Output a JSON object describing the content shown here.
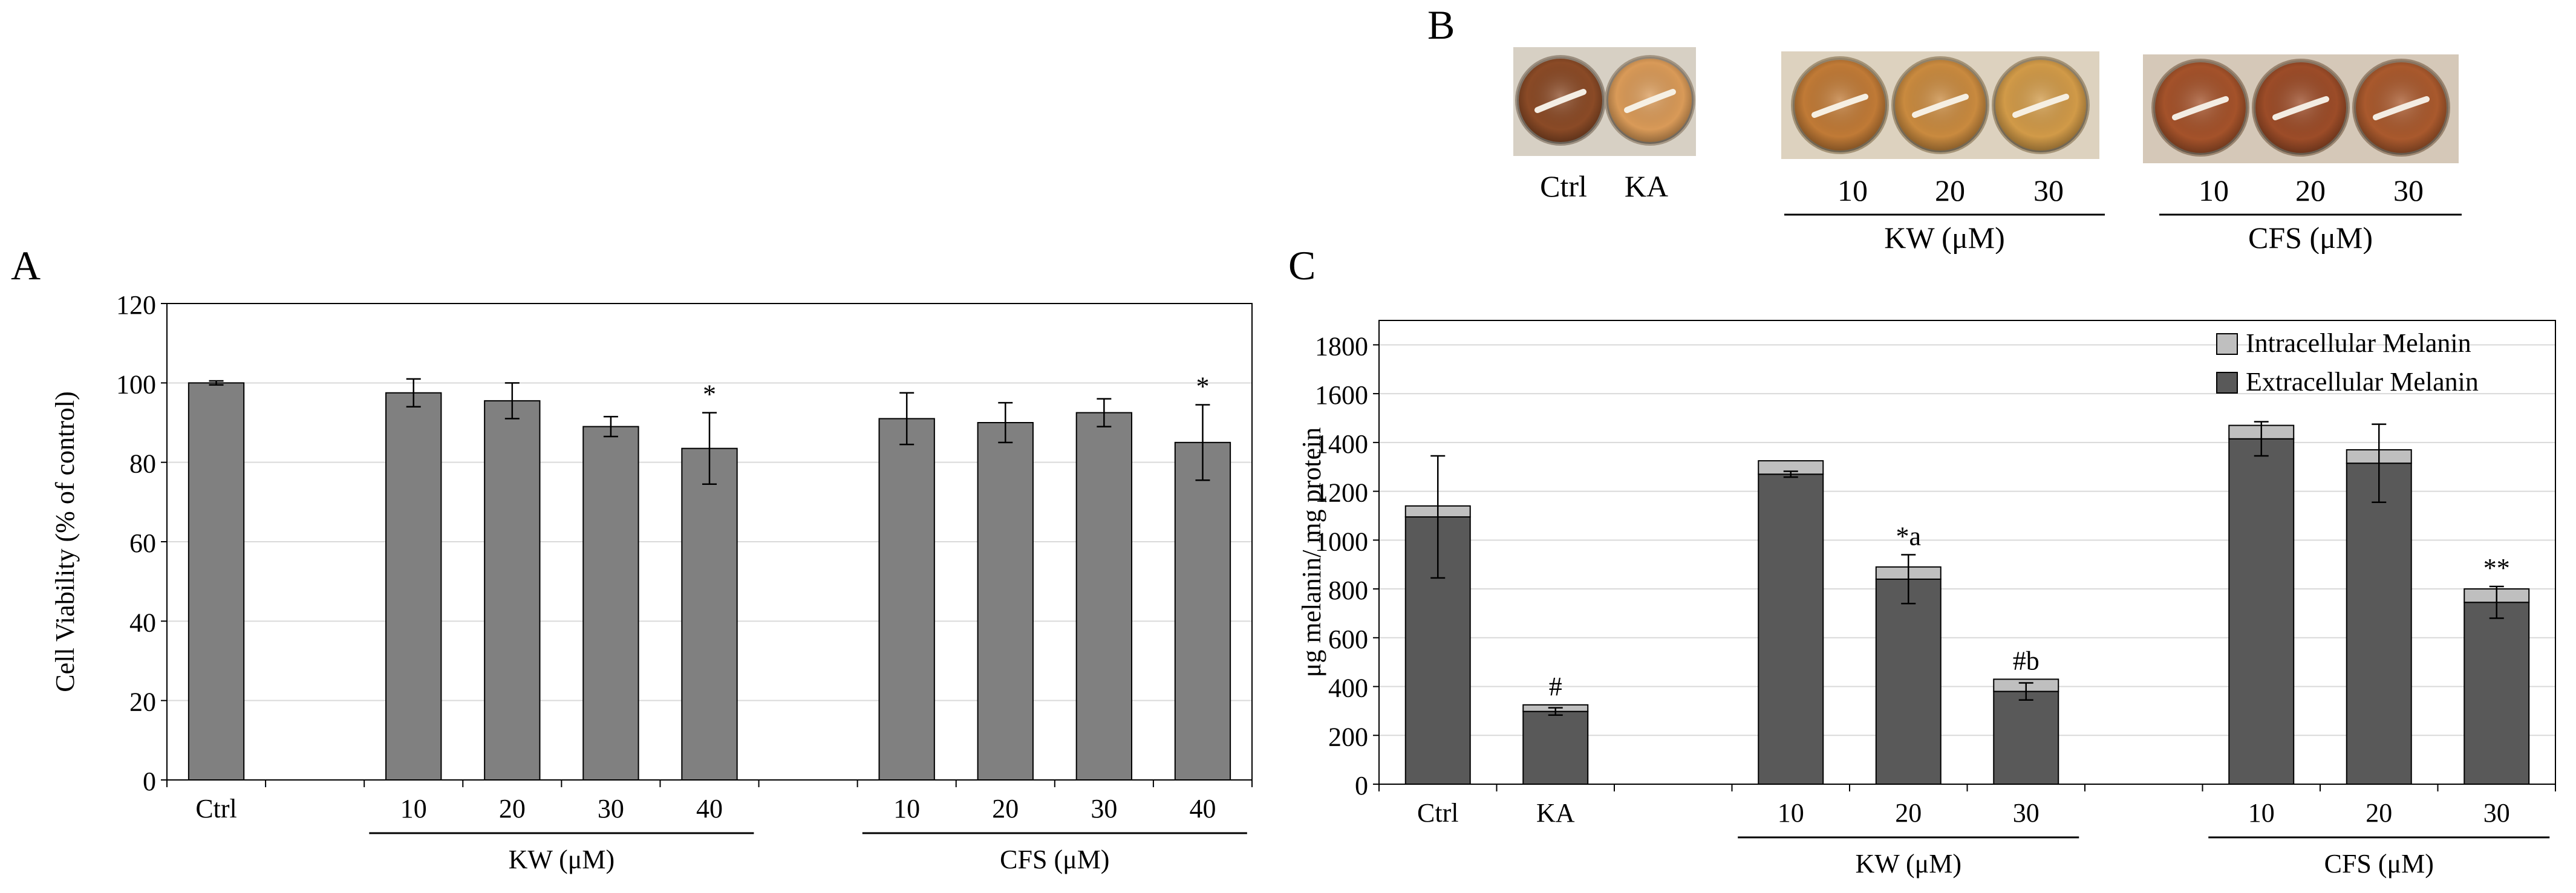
{
  "panels": {
    "A": {
      "label": "A"
    },
    "B": {
      "label": "B",
      "ctrl_label": "Ctrl",
      "ka_label": "KA",
      "kw_ticks": [
        "10",
        "20",
        "30"
      ],
      "cfs_ticks": [
        "10",
        "20",
        "30"
      ],
      "kw_group": "KW (μM)",
      "cfs_group": "CFS (μM)",
      "well_colors": {
        "ctrl": "#8a4a26",
        "ka": "#d99a58",
        "kw": [
          "#c07a36",
          "#c98a3f",
          "#d19a48"
        ],
        "cfs": [
          "#a4522a",
          "#9c4c28",
          "#a9592d"
        ]
      }
    },
    "C": {
      "label": "C"
    }
  },
  "chart_data": [
    {
      "id": "A",
      "type": "bar",
      "title": "",
      "xlabel": "",
      "ylabel": "Cell Viability (% of control)",
      "ylim": [
        0,
        120
      ],
      "yticks": [
        0,
        20,
        40,
        60,
        80,
        100,
        120
      ],
      "grid": true,
      "bar_color": "#808080",
      "categories": [
        "Ctrl",
        "",
        "10",
        "20",
        "30",
        "40",
        "",
        "10",
        "20",
        "30",
        "40"
      ],
      "values": [
        100,
        null,
        97.5,
        95.5,
        89.0,
        83.5,
        null,
        91.0,
        90.0,
        92.5,
        85.0
      ],
      "errors": [
        0.5,
        null,
        3.5,
        4.5,
        2.5,
        9.0,
        null,
        6.5,
        5.0,
        3.5,
        9.5
      ],
      "annotations": [
        "",
        "",
        "",
        "",
        "",
        "*",
        "",
        "",
        "",
        "",
        "*"
      ],
      "groups": [
        {
          "label": "KW (μM)",
          "from": 2,
          "to": 5
        },
        {
          "label": "CFS (μM)",
          "from": 7,
          "to": 10
        }
      ]
    },
    {
      "id": "C",
      "type": "bar",
      "stacked": true,
      "title": "",
      "xlabel": "",
      "ylabel": "μg melanin/ mg protein",
      "ylim": [
        0,
        1900
      ],
      "yticks": [
        0,
        200,
        400,
        600,
        800,
        1000,
        1200,
        1400,
        1600,
        1800
      ],
      "grid": true,
      "legend_position": "top-right",
      "categories": [
        "Ctrl",
        "KA",
        "",
        "10",
        "20",
        "30",
        "",
        "10",
        "20",
        "30"
      ],
      "series": [
        {
          "name": "Extracellular Melanin",
          "color": "#595959",
          "values": [
            1095,
            298,
            null,
            1270,
            840,
            380,
            null,
            1415,
            1315,
            745
          ]
        },
        {
          "name": "Intracellular Melanin",
          "color": "#bfbfbf",
          "values": [
            45,
            27,
            null,
            55,
            50,
            50,
            null,
            55,
            55,
            55
          ]
        }
      ],
      "legend_order": [
        "Intracellular Melanin",
        "Extracellular Melanin"
      ],
      "errors": [
        250,
        15,
        null,
        12,
        100,
        35,
        null,
        70,
        160,
        65
      ],
      "annotations": [
        "",
        "#",
        "",
        "",
        "*a",
        "#b",
        "",
        "",
        "",
        "**"
      ],
      "groups": [
        {
          "label": "KW (μM)",
          "from": 3,
          "to": 5
        },
        {
          "label": "CFS (μM)",
          "from": 7,
          "to": 9
        }
      ]
    }
  ]
}
